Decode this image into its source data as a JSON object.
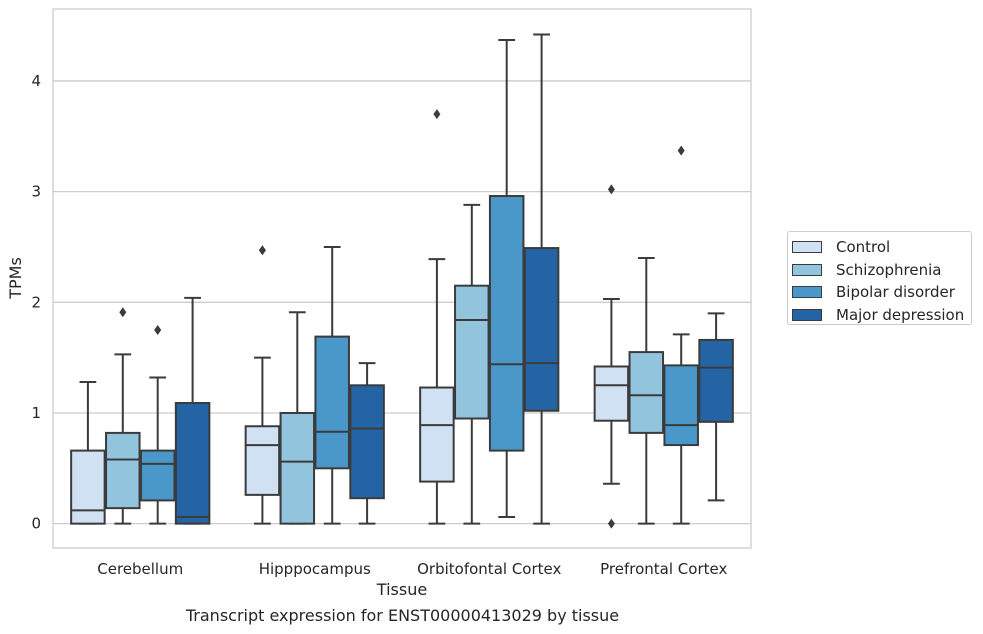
{
  "chart_data": {
    "type": "boxplot",
    "title": "Transcript expression for ENST00000413029 by tissue",
    "xlabel": "Tissue",
    "ylabel": "TPMs",
    "ylim": [
      -0.22,
      4.65
    ],
    "yticks": [
      0,
      1,
      2,
      3,
      4
    ],
    "grid": "horizontal",
    "legend_position": "right",
    "categories": [
      "Cerebellum",
      "Hipppocampus",
      "Orbitofontal Cortex",
      "Prefrontal Cortex"
    ],
    "series": [
      {
        "name": "Control",
        "color": "#cfe1f2",
        "boxes": [
          {
            "whislo": 0,
            "q1": 0,
            "med": 0.12,
            "q3": 0.66,
            "whishi": 1.28,
            "fliers": []
          },
          {
            "whislo": 0,
            "q1": 0.26,
            "med": 0.71,
            "q3": 0.88,
            "whishi": 1.5,
            "fliers": [
              2.47
            ]
          },
          {
            "whislo": 0,
            "q1": 0.38,
            "med": 0.89,
            "q3": 1.23,
            "whishi": 2.39,
            "fliers": [
              3.7
            ]
          },
          {
            "whislo": 0.36,
            "q1": 0.93,
            "med": 1.25,
            "q3": 1.42,
            "whishi": 2.03,
            "fliers": [
              0,
              3.02
            ]
          }
        ]
      },
      {
        "name": "Schizophrenia",
        "color": "#93c4de",
        "boxes": [
          {
            "whislo": 0,
            "q1": 0.14,
            "med": 0.58,
            "q3": 0.82,
            "whishi": 1.53,
            "fliers": [
              1.91
            ]
          },
          {
            "whislo": 0,
            "q1": 0,
            "med": 0.56,
            "q3": 1.0,
            "whishi": 1.91,
            "fliers": []
          },
          {
            "whislo": 0,
            "q1": 0.95,
            "med": 1.84,
            "q3": 2.15,
            "whishi": 2.88,
            "fliers": []
          },
          {
            "whislo": 0,
            "q1": 0.82,
            "med": 1.16,
            "q3": 1.55,
            "whishi": 2.4,
            "fliers": []
          }
        ]
      },
      {
        "name": "Bipolar disorder",
        "color": "#4a98c9",
        "boxes": [
          {
            "whislo": 0,
            "q1": 0.21,
            "med": 0.54,
            "q3": 0.66,
            "whishi": 1.32,
            "fliers": [
              1.75
            ]
          },
          {
            "whislo": 0,
            "q1": 0.5,
            "med": 0.83,
            "q3": 1.69,
            "whishi": 2.5,
            "fliers": []
          },
          {
            "whislo": 0.06,
            "q1": 0.66,
            "med": 1.44,
            "q3": 2.96,
            "whishi": 4.37,
            "fliers": []
          },
          {
            "whislo": 0,
            "q1": 0.71,
            "med": 0.89,
            "q3": 1.43,
            "whishi": 1.71,
            "fliers": [
              3.37
            ]
          }
        ]
      },
      {
        "name": "Major depression",
        "color": "#2464a5",
        "boxes": [
          {
            "whislo": 0,
            "q1": 0,
            "med": 0.06,
            "q3": 1.09,
            "whishi": 2.04,
            "fliers": []
          },
          {
            "whislo": 0,
            "q1": 0.23,
            "med": 0.86,
            "q3": 1.25,
            "whishi": 1.45,
            "fliers": []
          },
          {
            "whislo": 0,
            "q1": 1.02,
            "med": 1.45,
            "q3": 2.49,
            "whishi": 4.42,
            "fliers": []
          },
          {
            "whislo": 0.21,
            "q1": 0.92,
            "med": 1.41,
            "q3": 1.66,
            "whishi": 1.9,
            "fliers": []
          }
        ]
      }
    ]
  }
}
